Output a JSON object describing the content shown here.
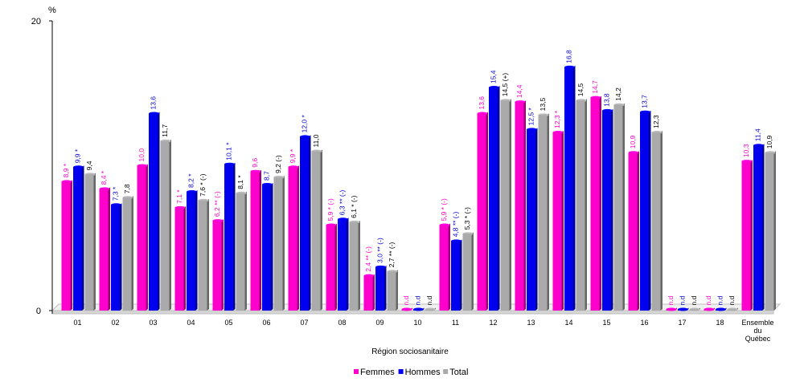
{
  "chart_data": {
    "type": "bar",
    "unit_label": "%",
    "xlabel": "Région sociosanitaire",
    "ylim": [
      0,
      20
    ],
    "yticks": [
      "0",
      "20"
    ],
    "categories": [
      "01",
      "02",
      "03",
      "04",
      "05",
      "06",
      "07",
      "08",
      "09",
      "10",
      "11",
      "12",
      "13",
      "14",
      "15",
      "16",
      "17",
      "18",
      "Ensemble du Québec"
    ],
    "series": [
      {
        "name": "Femmes",
        "color": "#ff00cc",
        "values": [
          8.9,
          8.4,
          10.0,
          7.1,
          6.2,
          9.6,
          9.9,
          5.9,
          2.4,
          0,
          5.9,
          13.6,
          14.4,
          12.3,
          14.7,
          10.9,
          0,
          0,
          10.3
        ],
        "labels": [
          "8,9 *",
          "8,4 *",
          "10,0",
          "7,1 *",
          "6,2 ** (-)",
          "9,6",
          "9,9 *",
          "5,9 * (-)",
          "2,4 ** (-)",
          "n.d",
          "5,9 * (-)",
          "13,6",
          "14,4",
          "12,3 *",
          "14,7",
          "10,9",
          "n.d",
          "n.d",
          "10,3"
        ]
      },
      {
        "name": "Hommes",
        "color": "#0000ee",
        "values": [
          9.9,
          7.3,
          13.6,
          8.2,
          10.1,
          8.7,
          12.0,
          6.3,
          3.0,
          0,
          4.8,
          15.4,
          12.5,
          16.8,
          13.8,
          13.7,
          0,
          0,
          11.4
        ],
        "labels": [
          "9,9 *",
          "7,3 *",
          "13,6",
          "8,2 *",
          "10,1 *",
          "8,7",
          "12,0 *",
          "6,3 ** (-)",
          "3,0 ** (-)",
          "n.d",
          "4,8 ** (-)",
          "15,4",
          "12,5 *",
          "16,8",
          "13,8",
          "13,7",
          "n.d",
          "n.d",
          "11,4"
        ]
      },
      {
        "name": "Total",
        "color": "#aaaaaa",
        "values": [
          9.4,
          7.8,
          11.7,
          7.6,
          8.1,
          9.2,
          11.0,
          6.1,
          2.7,
          0,
          5.3,
          14.5,
          13.5,
          14.5,
          14.2,
          12.3,
          0,
          0,
          10.9
        ],
        "labels": [
          "9,4",
          "7,8",
          "11,7",
          "7,6 * (-)",
          "8,1 *",
          "9,2 (-)",
          "11,0",
          "6,1 * (-)",
          "2,7 ** (-)",
          "n.d",
          "5,3 * (-)",
          "14,5 (+)",
          "13,5",
          "14,5",
          "14,2",
          "12,3",
          "n.d",
          "n.d",
          "10,9"
        ]
      }
    ],
    "legend_position": "bottom-center",
    "grid": false
  }
}
